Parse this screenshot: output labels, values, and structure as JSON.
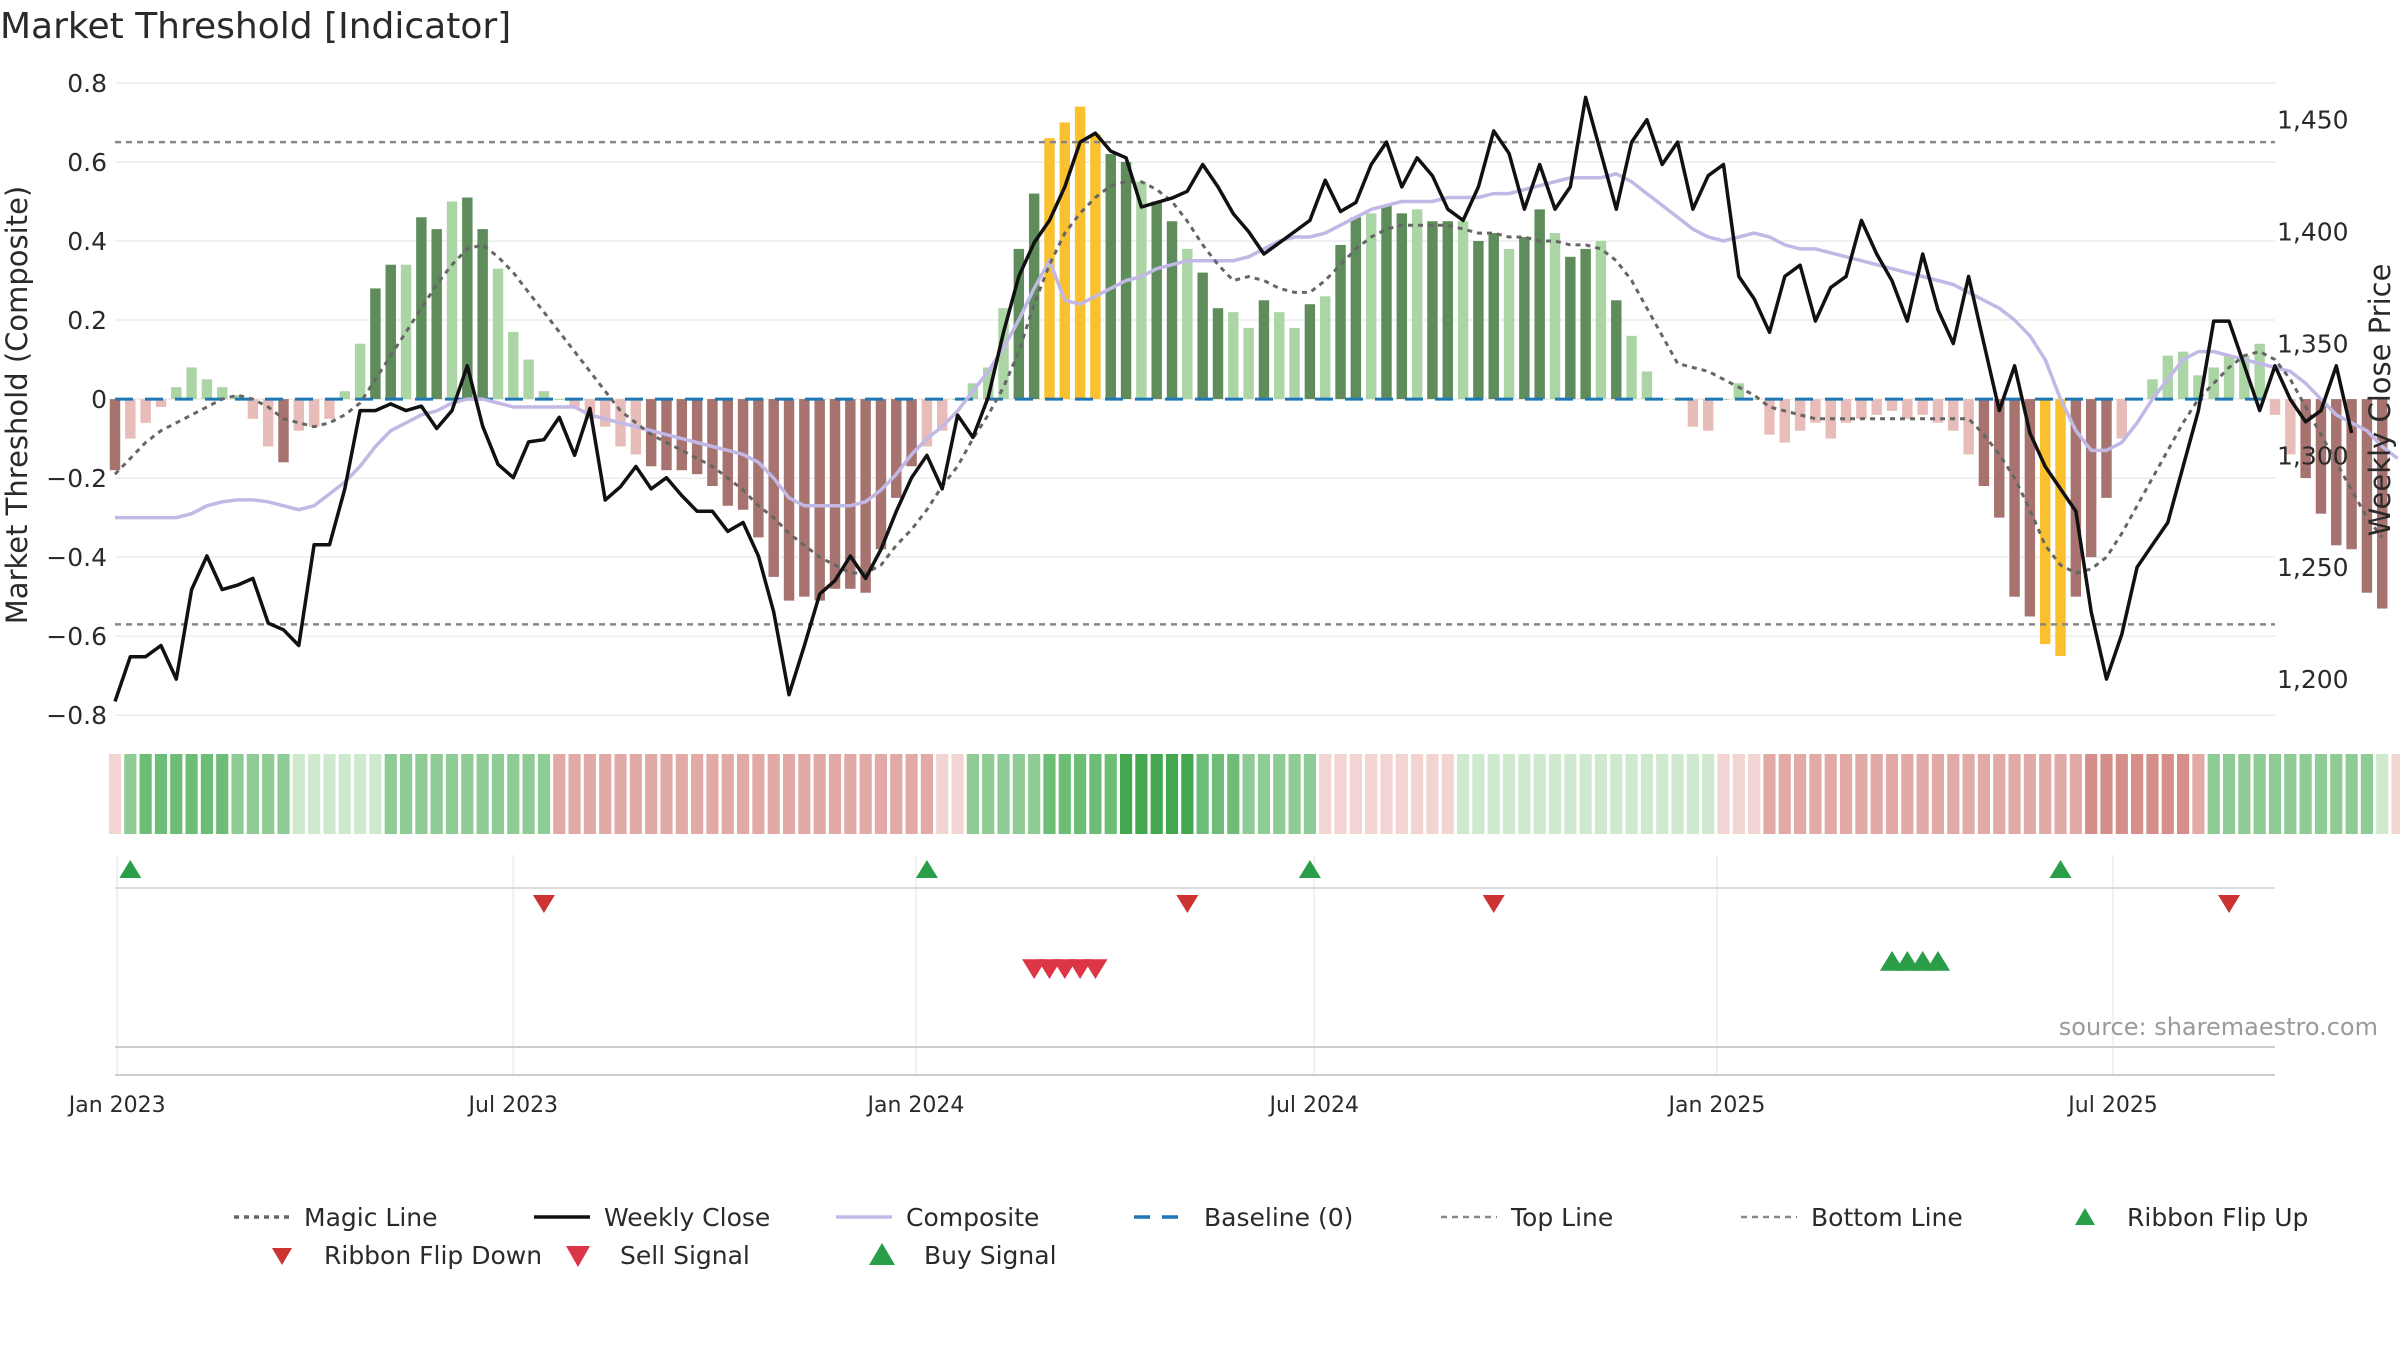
{
  "title": "Market Threshold [Indicator]",
  "source": "source: sharemaestro.com",
  "chart_data": {
    "type": "bar",
    "title": "Market Threshold [Indicator]",
    "ylabel": "Market Threshold (Composite)",
    "y2label": "Weekly Close Price",
    "ylim": [
      -0.85,
      0.82
    ],
    "y2lim": [
      1175,
      1470
    ],
    "y_ticks": [
      0.8,
      0.6,
      0.4,
      0.2,
      0,
      -0.2,
      -0.4,
      -0.6,
      -0.8
    ],
    "y_tick_labels": [
      "0.8",
      "0.6",
      "0.4",
      "0.2",
      "0",
      "−0.2",
      "−0.4",
      "−0.6",
      "−0.8"
    ],
    "y2_ticks": [
      1450,
      1400,
      1350,
      1300,
      1250,
      1200
    ],
    "y2_tick_labels": [
      "1,450",
      "1,400",
      "1,350",
      "1,300",
      "1,250",
      "1,200"
    ],
    "x_ticks": [
      "2023-01-01",
      "2023-07-01",
      "2024-01-01",
      "2024-07-01",
      "2025-01-01",
      "2025-07-01"
    ],
    "x_tick_labels": [
      "Jan 2023",
      "Jul 2023",
      "Jan 2024",
      "Jul 2024",
      "Jan 2025",
      "Jul 2025"
    ],
    "top_line": 0.65,
    "bottom_line": -0.57,
    "baseline": 0,
    "colors": {
      "strong_up": "#5e8c5b",
      "weak_up": "#acd5a6",
      "strong_down": "#a6736f",
      "weak_down": "#e8bcb8",
      "extreme": "#fbc02d",
      "close": "#111111",
      "composite": "#c1b8e6",
      "magic": "#666666",
      "baseline": "#1f77b4",
      "threshold": "#888888",
      "flip": "#2a9d48",
      "flip_down": "#cc3333",
      "sell": "#dc3545",
      "buy": "#2a9d48"
    },
    "series": [
      {
        "name": "Composite",
        "kind": "bars",
        "start": "2022-12-31",
        "step_days": 7,
        "values": [
          -0.18,
          -0.1,
          -0.06,
          -0.02,
          0.03,
          0.08,
          0.05,
          0.03,
          0.01,
          -0.05,
          -0.12,
          -0.16,
          -0.08,
          -0.07,
          -0.05,
          0.02,
          0.14,
          0.28,
          0.34,
          0.34,
          0.46,
          0.43,
          0.5,
          0.51,
          0.43,
          0.33,
          0.17,
          0.1,
          0.02,
          0.0,
          -0.02,
          -0.05,
          -0.07,
          -0.12,
          -0.14,
          -0.17,
          -0.18,
          -0.18,
          -0.19,
          -0.22,
          -0.27,
          -0.28,
          -0.35,
          -0.45,
          -0.51,
          -0.5,
          -0.51,
          -0.48,
          -0.48,
          -0.49,
          -0.38,
          -0.25,
          -0.17,
          -0.12,
          -0.08,
          0.0,
          0.04,
          0.08,
          0.23,
          0.38,
          0.52,
          0.66,
          0.7,
          0.74,
          0.67,
          0.62,
          0.6,
          0.55,
          0.5,
          0.45,
          0.38,
          0.32,
          0.23,
          0.22,
          0.18,
          0.25,
          0.22,
          0.18,
          0.24,
          0.26,
          0.39,
          0.46,
          0.47,
          0.49,
          0.47,
          0.48,
          0.45,
          0.45,
          0.45,
          0.4,
          0.42,
          0.38,
          0.41,
          0.48,
          0.42,
          0.36,
          0.38,
          0.4,
          0.25,
          0.16,
          0.07,
          0.0,
          0.0,
          -0.07,
          -0.08,
          0.0,
          0.04,
          0.0,
          -0.09,
          -0.11,
          -0.08,
          -0.06,
          -0.1,
          -0.06,
          -0.05,
          -0.04,
          -0.03,
          -0.05,
          -0.04,
          -0.06,
          -0.08,
          -0.14,
          -0.22,
          -0.3,
          -0.5,
          -0.55,
          -0.62,
          -0.65,
          -0.5,
          -0.4,
          -0.25,
          -0.1,
          0.0,
          0.05,
          0.11,
          0.12,
          0.06,
          0.08,
          0.11,
          0.11,
          0.14,
          -0.04,
          -0.14,
          -0.2,
          -0.29,
          -0.37,
          -0.38,
          -0.49,
          -0.53
        ]
      },
      {
        "name": "Weekly Close",
        "kind": "line",
        "axis": "right",
        "start": "2022-12-31",
        "step_days": 7,
        "values": [
          1190,
          1210,
          1210,
          1215,
          1200,
          1240,
          1255,
          1240,
          1242,
          1245,
          1225,
          1222,
          1215,
          1260,
          1260,
          1285,
          1320,
          1320,
          1323,
          1320,
          1322,
          1312,
          1320,
          1340,
          1313,
          1296,
          1290,
          1306,
          1307,
          1317,
          1300,
          1321,
          1280,
          1286,
          1295,
          1285,
          1290,
          1282,
          1275,
          1275,
          1266,
          1270,
          1255,
          1230,
          1193,
          1215,
          1238,
          1244,
          1255,
          1245,
          1258,
          1275,
          1290,
          1300,
          1285,
          1318,
          1308,
          1326,
          1355,
          1380,
          1395,
          1405,
          1420,
          1440,
          1444,
          1436,
          1433,
          1411,
          1413,
          1415,
          1418,
          1430,
          1420,
          1408,
          1400,
          1390,
          1395,
          1400,
          1405,
          1423,
          1409,
          1413,
          1430,
          1440,
          1420,
          1433,
          1425,
          1410,
          1405,
          1420,
          1445,
          1435,
          1410,
          1430,
          1410,
          1420,
          1460,
          1435,
          1410,
          1440,
          1450,
          1430,
          1440,
          1410,
          1425,
          1430,
          1380,
          1370,
          1355,
          1380,
          1385,
          1360,
          1375,
          1380,
          1405,
          1390,
          1378,
          1360,
          1390,
          1365,
          1350,
          1380,
          1350,
          1320,
          1340,
          1310,
          1295,
          1285,
          1275,
          1230,
          1200,
          1220,
          1250,
          1260,
          1270,
          1295,
          1320,
          1360,
          1360,
          1340,
          1320,
          1340,
          1325,
          1315,
          1320,
          1340,
          1310
        ]
      },
      {
        "name": "Magic Line",
        "kind": "dashed-line",
        "start": "2022-12-31",
        "step_days": 7,
        "values": [
          -0.19,
          -0.15,
          -0.11,
          -0.08,
          -0.06,
          -0.04,
          -0.02,
          0.0,
          0.01,
          0.0,
          -0.02,
          -0.05,
          -0.06,
          -0.07,
          -0.06,
          -0.04,
          -0.01,
          0.05,
          0.11,
          0.17,
          0.23,
          0.29,
          0.34,
          0.38,
          0.39,
          0.36,
          0.32,
          0.27,
          0.22,
          0.17,
          0.12,
          0.07,
          0.02,
          -0.03,
          -0.06,
          -0.09,
          -0.11,
          -0.13,
          -0.15,
          -0.17,
          -0.2,
          -0.23,
          -0.27,
          -0.3,
          -0.34,
          -0.37,
          -0.4,
          -0.42,
          -0.44,
          -0.44,
          -0.42,
          -0.37,
          -0.33,
          -0.28,
          -0.22,
          -0.17,
          -0.1,
          -0.04,
          0.03,
          0.12,
          0.24,
          0.34,
          0.42,
          0.47,
          0.51,
          0.54,
          0.55,
          0.55,
          0.53,
          0.5,
          0.45,
          0.39,
          0.34,
          0.3,
          0.31,
          0.3,
          0.28,
          0.27,
          0.27,
          0.3,
          0.34,
          0.38,
          0.41,
          0.43,
          0.44,
          0.44,
          0.44,
          0.44,
          0.43,
          0.42,
          0.42,
          0.41,
          0.41,
          0.4,
          0.4,
          0.39,
          0.39,
          0.38,
          0.35,
          0.3,
          0.23,
          0.16,
          0.09,
          0.08,
          0.07,
          0.05,
          0.03,
          0.01,
          -0.02,
          -0.03,
          -0.04,
          -0.05,
          -0.05,
          -0.05,
          -0.05,
          -0.05,
          -0.05,
          -0.05,
          -0.05,
          -0.05,
          -0.05,
          -0.05,
          -0.09,
          -0.14,
          -0.2,
          -0.28,
          -0.37,
          -0.42,
          -0.44,
          -0.43,
          -0.4,
          -0.34,
          -0.27,
          -0.2,
          -0.13,
          -0.06,
          0.0,
          0.04,
          0.08,
          0.11,
          0.12,
          0.1,
          0.05,
          -0.02,
          -0.09,
          -0.16,
          -0.23,
          -0.3,
          -0.35
        ]
      },
      {
        "name": "Composite",
        "kind": "smooth-line",
        "start": "2022-12-31",
        "step_days": 7,
        "values": [
          -0.3,
          -0.3,
          -0.3,
          -0.3,
          -0.3,
          -0.29,
          -0.27,
          -0.26,
          -0.255,
          -0.255,
          -0.26,
          -0.27,
          -0.28,
          -0.27,
          -0.24,
          -0.21,
          -0.17,
          -0.12,
          -0.08,
          -0.06,
          -0.04,
          -0.03,
          -0.01,
          0.0,
          0.0,
          -0.01,
          -0.02,
          -0.02,
          -0.02,
          -0.02,
          -0.02,
          -0.04,
          -0.05,
          -0.06,
          -0.07,
          -0.08,
          -0.09,
          -0.1,
          -0.11,
          -0.12,
          -0.13,
          -0.14,
          -0.16,
          -0.2,
          -0.25,
          -0.27,
          -0.27,
          -0.27,
          -0.27,
          -0.26,
          -0.23,
          -0.19,
          -0.14,
          -0.1,
          -0.07,
          -0.03,
          0.02,
          0.07,
          0.13,
          0.2,
          0.28,
          0.35,
          0.25,
          0.24,
          0.26,
          0.28,
          0.3,
          0.31,
          0.33,
          0.34,
          0.35,
          0.35,
          0.35,
          0.35,
          0.36,
          0.38,
          0.4,
          0.41,
          0.41,
          0.42,
          0.44,
          0.46,
          0.48,
          0.49,
          0.5,
          0.5,
          0.5,
          0.51,
          0.51,
          0.51,
          0.52,
          0.52,
          0.53,
          0.54,
          0.55,
          0.56,
          0.56,
          0.56,
          0.57,
          0.55,
          0.52,
          0.49,
          0.46,
          0.43,
          0.41,
          0.4,
          0.41,
          0.42,
          0.41,
          0.39,
          0.38,
          0.38,
          0.37,
          0.36,
          0.35,
          0.34,
          0.33,
          0.32,
          0.31,
          0.3,
          0.29,
          0.27,
          0.25,
          0.23,
          0.2,
          0.16,
          0.1,
          0.0,
          -0.08,
          -0.13,
          -0.13,
          -0.11,
          -0.06,
          0.0,
          0.05,
          0.1,
          0.12,
          0.12,
          0.11,
          0.1,
          0.09,
          0.08,
          0.07,
          0.04,
          0.0,
          -0.04,
          -0.06,
          -0.08,
          -0.12,
          -0.15
        ]
      }
    ],
    "ribbon": {
      "name": "Ribbon",
      "start": "2022-12-31",
      "step_days": 7,
      "states": [
        "dn1",
        "up2",
        "up3",
        "up3",
        "up3",
        "up3",
        "up3",
        "up3",
        "up2",
        "up2",
        "up2",
        "up2",
        "up1",
        "up1",
        "up1",
        "up1",
        "up1",
        "up1",
        "up2",
        "up2",
        "up2",
        "up2",
        "up2",
        "up2",
        "up2",
        "up2",
        "up2",
        "up2",
        "up2",
        "dn2",
        "dn2",
        "dn2",
        "dn2",
        "dn2",
        "dn2",
        "dn2",
        "dn2",
        "dn2",
        "dn2",
        "dn2",
        "dn2",
        "dn2",
        "dn2",
        "dn2",
        "dn2",
        "dn2",
        "dn2",
        "dn2",
        "dn2",
        "dn2",
        "dn2",
        "dn2",
        "dn2",
        "dn2",
        "dn1",
        "dn1",
        "up2",
        "up2",
        "up2",
        "up2",
        "up2",
        "up3",
        "up3",
        "up3",
        "up3",
        "up3",
        "up4",
        "up4",
        "up4",
        "up4",
        "up4",
        "up3",
        "up3",
        "up3",
        "up2",
        "up2",
        "up2",
        "up2",
        "up2",
        "dn1",
        "dn1",
        "dn1",
        "dn1",
        "dn1",
        "dn1",
        "dn1",
        "dn1",
        "dn1",
        "up1",
        "up1",
        "up1",
        "up1",
        "up1",
        "up1",
        "up1",
        "up1",
        "up1",
        "up1",
        "up1",
        "up1",
        "up1",
        "up1",
        "up1",
        "up1",
        "up1",
        "dn1",
        "dn1",
        "dn1",
        "dn2",
        "dn2",
        "dn2",
        "dn2",
        "dn2",
        "dn2",
        "dn2",
        "dn2",
        "dn2",
        "dn2",
        "dn2",
        "dn2",
        "dn2",
        "dn2",
        "dn2",
        "dn2",
        "dn2",
        "dn2",
        "dn2",
        "dn2",
        "dn2",
        "dn3",
        "dn3",
        "dn3",
        "dn3",
        "dn3",
        "dn3",
        "dn3",
        "dn2",
        "up2",
        "up2",
        "up2",
        "up2",
        "up2",
        "up2",
        "up2",
        "up2",
        "up2",
        "up2",
        "up2",
        "up1",
        "dn1",
        "dn1",
        "dn1",
        "dn2",
        "dn2",
        "dn2",
        "dn2",
        "dn2"
      ]
    },
    "events": [
      {
        "name": "Ribbon Flip Up",
        "dates": [
          "2023-01-07",
          "2024-01-06",
          "2024-06-29",
          "2025-06-07"
        ]
      },
      {
        "name": "Ribbon Flip Down",
        "dates": [
          "2023-07-15",
          "2024-05-04",
          "2024-09-21",
          "2025-08-23"
        ]
      },
      {
        "name": "Sell Signal",
        "dates": [
          "2024-02-24",
          "2024-03-02",
          "2024-03-09",
          "2024-03-16",
          "2024-03-23"
        ]
      },
      {
        "name": "Buy Signal",
        "dates": [
          "2025-03-22",
          "2025-03-29",
          "2025-04-05",
          "2025-04-12"
        ]
      }
    ],
    "legend": [
      {
        "name": "Magic Line",
        "symbol": "dotted"
      },
      {
        "name": "Weekly Close",
        "symbol": "solid-black"
      },
      {
        "name": "Composite",
        "symbol": "solid-lavender"
      },
      {
        "name": "Baseline (0)",
        "symbol": "dashed-blue"
      },
      {
        "name": "Top Line",
        "symbol": "dashed-grey"
      },
      {
        "name": "Bottom Line",
        "symbol": "dashed-grey"
      },
      {
        "name": "Ribbon Flip Up",
        "symbol": "triangle-up-green"
      },
      {
        "name": "Ribbon Flip Down",
        "symbol": "triangle-down-darkred"
      },
      {
        "name": "Sell Signal",
        "symbol": "triangle-down-red"
      },
      {
        "name": "Buy Signal",
        "symbol": "triangle-up-green-large"
      }
    ],
    "legend_position": "bottom",
    "grid": true
  }
}
